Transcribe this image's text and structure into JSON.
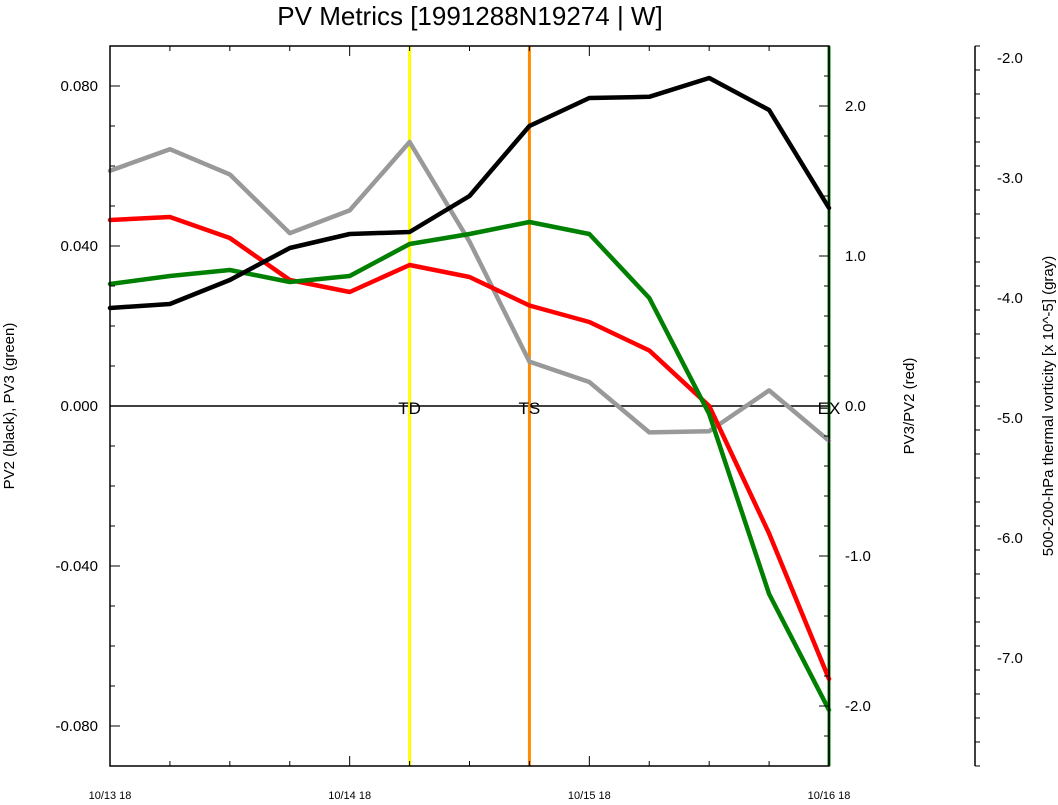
{
  "chart_data": {
    "type": "line",
    "title": "PV Metrics [1991288N19274 | W]",
    "x_tick_labels": [
      "10/13 18",
      "10/14 18",
      "10/15 18",
      "10/16 18"
    ],
    "x_ticks_days": [
      0,
      1,
      2,
      3
    ],
    "x_days": [
      0,
      0.25,
      0.5,
      0.75,
      1,
      1.25,
      1.5,
      1.75,
      2,
      2.25,
      2.5,
      2.75,
      3
    ],
    "left_axis": {
      "label": "PV2 (black), PV3 (green)",
      "ylim": [
        -0.09,
        0.09
      ],
      "tick_values": [
        -0.08,
        -0.04,
        0,
        0.04,
        0.08
      ],
      "tick_labels": [
        "-0.080",
        "-0.040",
        "0.000",
        "0.040",
        "0.080"
      ]
    },
    "right_axis_1": {
      "label": "PV3/PV2 (red)",
      "ylim": [
        -2.4,
        2.4
      ],
      "tick_values": [
        -2,
        -1,
        0,
        1,
        2
      ],
      "tick_labels": [
        "-2.0",
        "-1.0",
        "0.0",
        "1.0",
        "2.0"
      ]
    },
    "right_axis_2": {
      "label": "500-200-hPa thermal vorticity [x 10^-5] (gray)",
      "ylim": [
        -7.9,
        -1.9
      ],
      "tick_values": [
        -7,
        -6,
        -5,
        -4,
        -3,
        -2
      ],
      "tick_labels": [
        "-7.0",
        "-6.0",
        "-5.0",
        "-4.0",
        "-3.0",
        "-2.0"
      ]
    },
    "series": [
      {
        "color": "#999999",
        "axis": "right2",
        "values": [
          -2.94,
          -2.76,
          -2.97,
          -3.46,
          -3.27,
          -2.7,
          -3.53,
          -4.53,
          -4.7,
          -5.12,
          -5.11,
          -4.77,
          -5.19
        ]
      },
      {
        "color": "#ff0000",
        "axis": "right1",
        "values": [
          1.24,
          1.26,
          1.12,
          0.84,
          0.76,
          0.94,
          0.86,
          0.67,
          0.56,
          0.37,
          0.0,
          -0.85,
          -1.82
        ]
      },
      {
        "color": "#008000",
        "axis": "left",
        "values": [
          0.0305,
          0.0325,
          0.034,
          0.031,
          0.0325,
          0.0405,
          0.043,
          0.046,
          0.043,
          0.027,
          -0.002,
          -0.047,
          -0.076
        ]
      },
      {
        "color": "#000000",
        "axis": "left",
        "values": [
          0.0245,
          0.0255,
          0.0315,
          0.0395,
          0.043,
          0.0435,
          0.0525,
          0.07,
          0.077,
          0.0773,
          0.082,
          0.074,
          0.0495
        ]
      }
    ],
    "zero_line": 0,
    "stage_markers": [
      {
        "label": "TD",
        "x": 1.25,
        "color": "#ffff00"
      },
      {
        "label": "TS",
        "x": 1.75,
        "color": "#ff8c00"
      },
      {
        "label": "EX",
        "x": 3.0,
        "color": "#008000"
      }
    ],
    "grid": false
  }
}
